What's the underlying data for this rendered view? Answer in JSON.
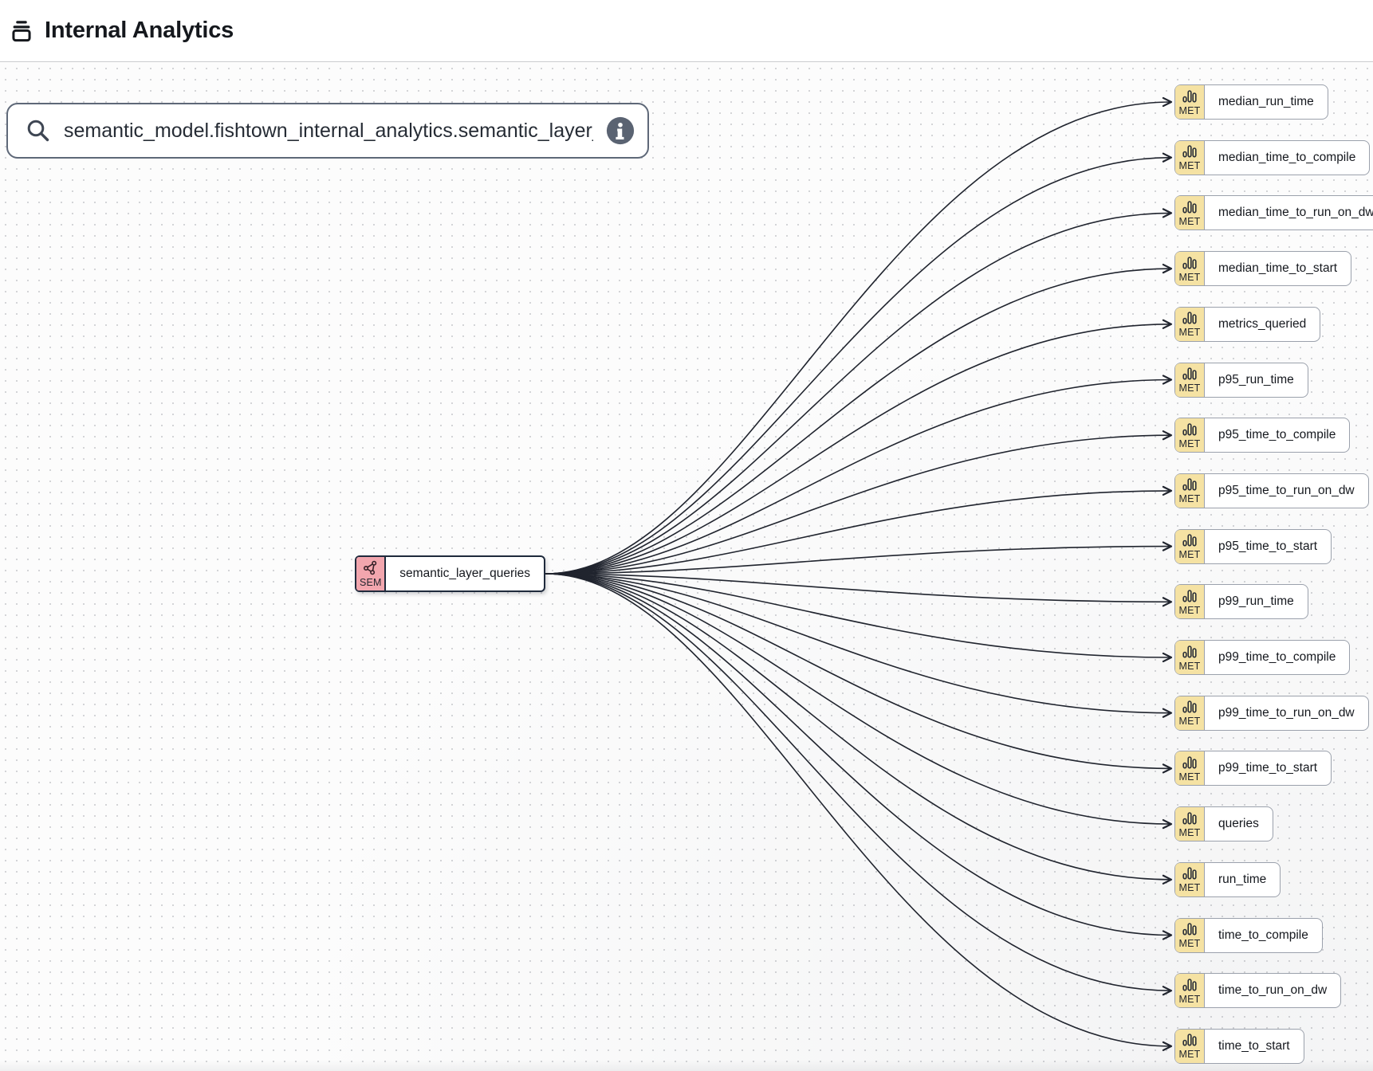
{
  "header": {
    "title": "Internal Analytics",
    "icon": "stacked-layers-icon"
  },
  "search": {
    "value": "semantic_model.fishtown_internal_analytics.semantic_layer_queries",
    "icons": [
      "search-icon",
      "info-icon"
    ]
  },
  "graph": {
    "source_node": {
      "label": "semantic_layer_queries",
      "badge": "SEM",
      "badge_color": "#F2A6AE",
      "border_color": "#1F2A3C",
      "icon": "semantic-model-icon"
    },
    "metric_nodes": {
      "badge": "MET",
      "badge_color": "#F5E2A3",
      "border_color": "#9BA1AC",
      "icon": "bar-chart-icon",
      "labels": [
        "median_run_time",
        "median_time_to_compile",
        "median_time_to_run_on_dw",
        "median_time_to_start",
        "metrics_queried",
        "p95_run_time",
        "p95_time_to_compile",
        "p95_time_to_run_on_dw",
        "p95_time_to_start",
        "p99_run_time",
        "p99_time_to_compile",
        "p99_time_to_run_on_dw",
        "p99_time_to_start",
        "queries",
        "run_time",
        "time_to_compile",
        "time_to_run_on_dw",
        "time_to_start"
      ]
    },
    "edge_color": "#20242E"
  }
}
